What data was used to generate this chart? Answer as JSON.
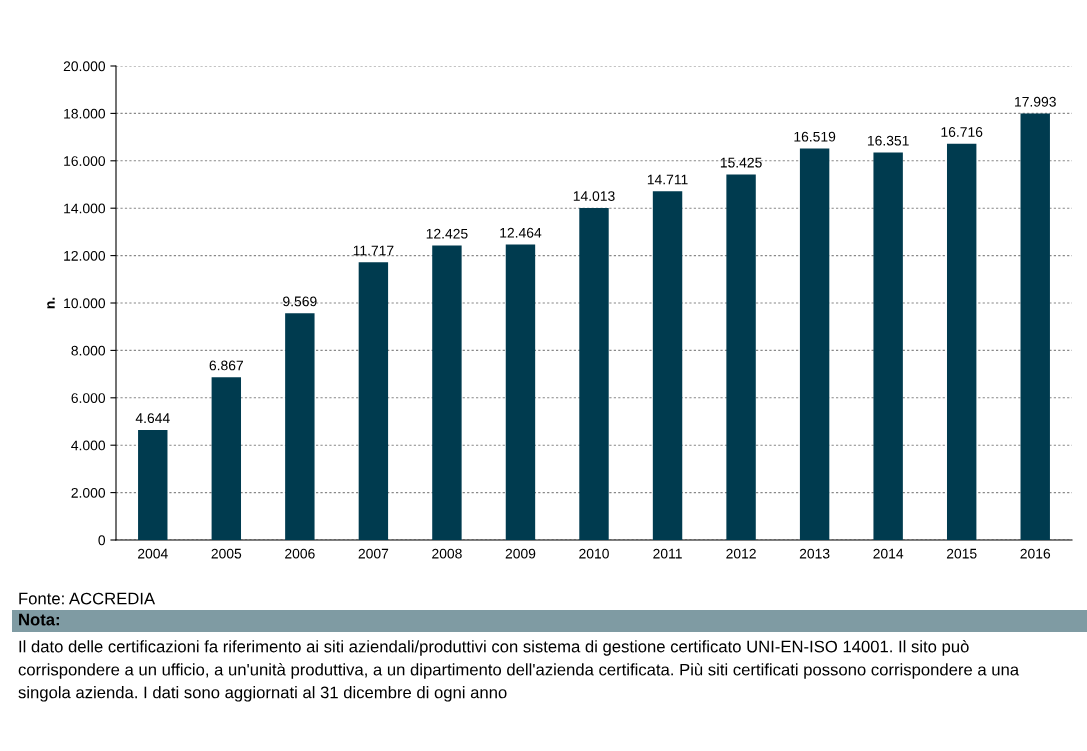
{
  "chart_data": {
    "type": "bar",
    "ylabel": "n.",
    "categories": [
      "2004",
      "2005",
      "2006",
      "2007",
      "2008",
      "2009",
      "2010",
      "2011",
      "2012",
      "2013",
      "2014",
      "2015",
      "2016"
    ],
    "values": [
      4644,
      6867,
      9569,
      11717,
      12425,
      12464,
      14013,
      14711,
      15425,
      16519,
      16351,
      16716,
      17993
    ],
    "value_labels": [
      "4.644",
      "6.867",
      "9.569",
      "11.717",
      "12.425",
      "12.464",
      "14.013",
      "14.711",
      "15.425",
      "16.519",
      "16.351",
      "16.716",
      "17.993"
    ],
    "color": "#003b4f",
    "ylim": [
      0,
      20000
    ],
    "yticks": [
      0,
      {
        "value": 2000,
        "label": "2.000"
      },
      {
        "value": 4000,
        "label": "4.000"
      },
      {
        "value": 6000,
        "label": "6.000"
      },
      {
        "value": 8000,
        "label": "8.000"
      },
      {
        "value": 10000,
        "label": "10.000"
      },
      {
        "value": 12000,
        "label": "12.000"
      },
      {
        "value": 14000,
        "label": "14.000"
      },
      {
        "value": 16000,
        "label": "16.000"
      },
      {
        "value": 18000,
        "label": "18.000"
      },
      {
        "value": 20000,
        "label": "20.000"
      }
    ],
    "grid": "y",
    "annotations": [
      "Fonte: ACCREDIA",
      "Nota:",
      "Il dato delle certificazioni fa riferimento ai siti aziendali/produttivi con sistema di gestione certificato UNI-EN-ISO 14001. Il sito può corrispondere a un ufficio, a un'unità produttiva, a un dipartimento dell'azienda certificata. Più siti certificati possono corrispondere a una singola azienda. I dati sono aggiornati al 31 dicembre di ogni anno"
    ]
  }
}
